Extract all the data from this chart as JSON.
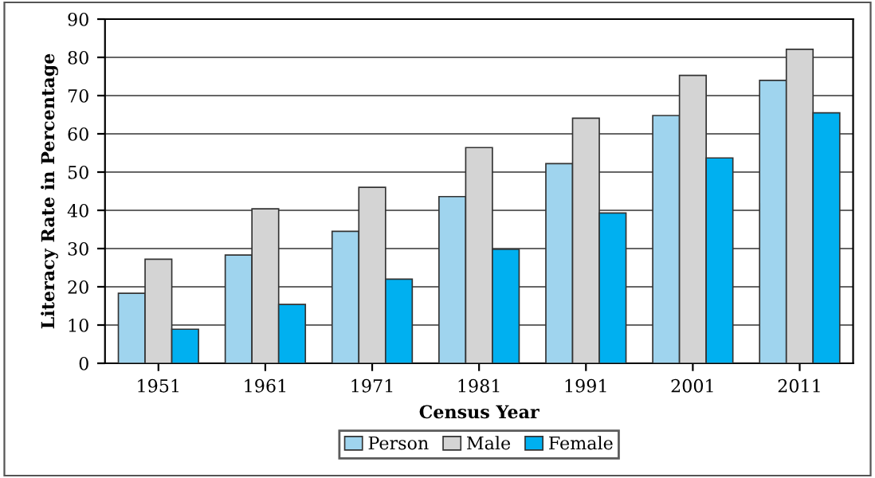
{
  "chart_data": {
    "type": "bar",
    "xlabel": "Census Year",
    "ylabel": "Literacy Rate in Percentage",
    "categories": [
      "1951",
      "1961",
      "1971",
      "1981",
      "1991",
      "2001",
      "2011"
    ],
    "series": [
      {
        "name": "Person",
        "color": "#9fd4ee",
        "values": [
          18.3,
          28.3,
          34.5,
          43.6,
          52.2,
          64.8,
          74.0
        ]
      },
      {
        "name": "Male",
        "color": "#d4d4d4",
        "values": [
          27.2,
          40.4,
          46.0,
          56.4,
          64.1,
          75.3,
          82.1
        ]
      },
      {
        "name": "Female",
        "color": "#00b0f0",
        "values": [
          8.9,
          15.4,
          22.0,
          29.8,
          39.3,
          53.7,
          65.5
        ]
      }
    ],
    "ylim": [
      0,
      90
    ],
    "yticks": [
      0,
      10,
      20,
      30,
      40,
      50,
      60,
      70,
      80,
      90
    ],
    "grid": "y",
    "legend": "bottom"
  }
}
